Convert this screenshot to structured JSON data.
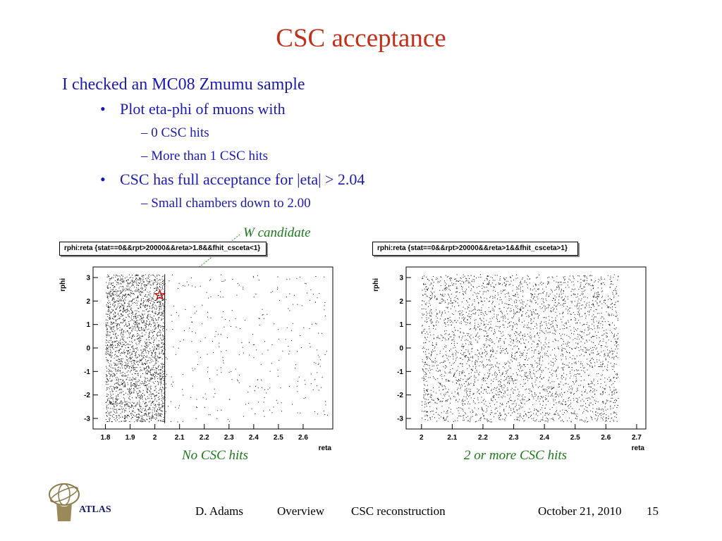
{
  "slide": {
    "title": "CSC acceptance",
    "bullets": {
      "l1": "I checked an MC08 Zmumu sample",
      "b1": "Plot eta-phi of muons with",
      "b1_sub1": "– 0 CSC hits",
      "b1_sub2": "– More than 1 CSC hits",
      "b2": "CSC has full acceptance for |eta| > 2.04",
      "b2_sub1": "– Small chambers down to 2.00"
    },
    "annotation": "W candidate",
    "caption_left": "No CSC hits",
    "caption_right": "2 or more CSC hits"
  },
  "footer": {
    "author": "D. Adams",
    "section1": "Overview",
    "section2": "CSC reconstruction",
    "date": "October 21, 2010",
    "page": "15",
    "logo_text": "ATLAS"
  },
  "colors": {
    "title": "#c0301a",
    "text": "#1a1ab0",
    "annotation": "#1a7a1a",
    "marker": "#cc0000"
  },
  "chart_data": [
    {
      "type": "scatter",
      "title": "rphi:reta {stat==0&&rpt>20000&&reta>1.8&&fhit_csceta<1}",
      "xlabel": "reta",
      "ylabel": "rphi",
      "xlim": [
        1.75,
        2.72
      ],
      "ylim": [
        -3.45,
        3.45
      ],
      "xticks": [
        "1.8",
        "1.9",
        "2",
        "2.1",
        "2.2",
        "2.3",
        "2.4",
        "2.5",
        "2.6"
      ],
      "xtick_values": [
        1.8,
        1.9,
        2.0,
        2.1,
        2.2,
        2.3,
        2.4,
        2.5,
        2.6
      ],
      "yticks": [
        "-3",
        "-2",
        "-1",
        "0",
        "1",
        "2",
        "3"
      ],
      "ytick_values": [
        -3,
        -2,
        -1,
        0,
        1,
        2,
        3
      ],
      "dense_region": {
        "x": [
          1.8,
          2.04
        ],
        "y": [
          -3.14,
          3.14
        ]
      },
      "sparse_region": {
        "x": [
          2.04,
          2.7
        ],
        "y": [
          -3.14,
          3.14
        ]
      },
      "cut_line_x": 2.04,
      "highlight": {
        "x": 2.02,
        "y": 2.25,
        "symbol": "star"
      }
    },
    {
      "type": "scatter",
      "title": "rphi:reta {stat==0&&rpt>20000&&reta>1&&fhit_csceta>1}",
      "xlabel": "reta",
      "ylabel": "rphi",
      "xlim": [
        1.95,
        2.73
      ],
      "ylim": [
        -3.45,
        3.45
      ],
      "xticks": [
        "2",
        "2.1",
        "2.2",
        "2.3",
        "2.4",
        "2.5",
        "2.6",
        "2.7"
      ],
      "xtick_values": [
        2.0,
        2.1,
        2.2,
        2.3,
        2.4,
        2.5,
        2.6,
        2.7
      ],
      "yticks": [
        "-3",
        "-2",
        "-1",
        "0",
        "1",
        "2",
        "3"
      ],
      "ytick_values": [
        -3,
        -2,
        -1,
        0,
        1,
        2,
        3
      ],
      "dense_region": {
        "x": [
          2.0,
          2.64
        ],
        "y": [
          -3.14,
          3.14
        ]
      }
    }
  ]
}
